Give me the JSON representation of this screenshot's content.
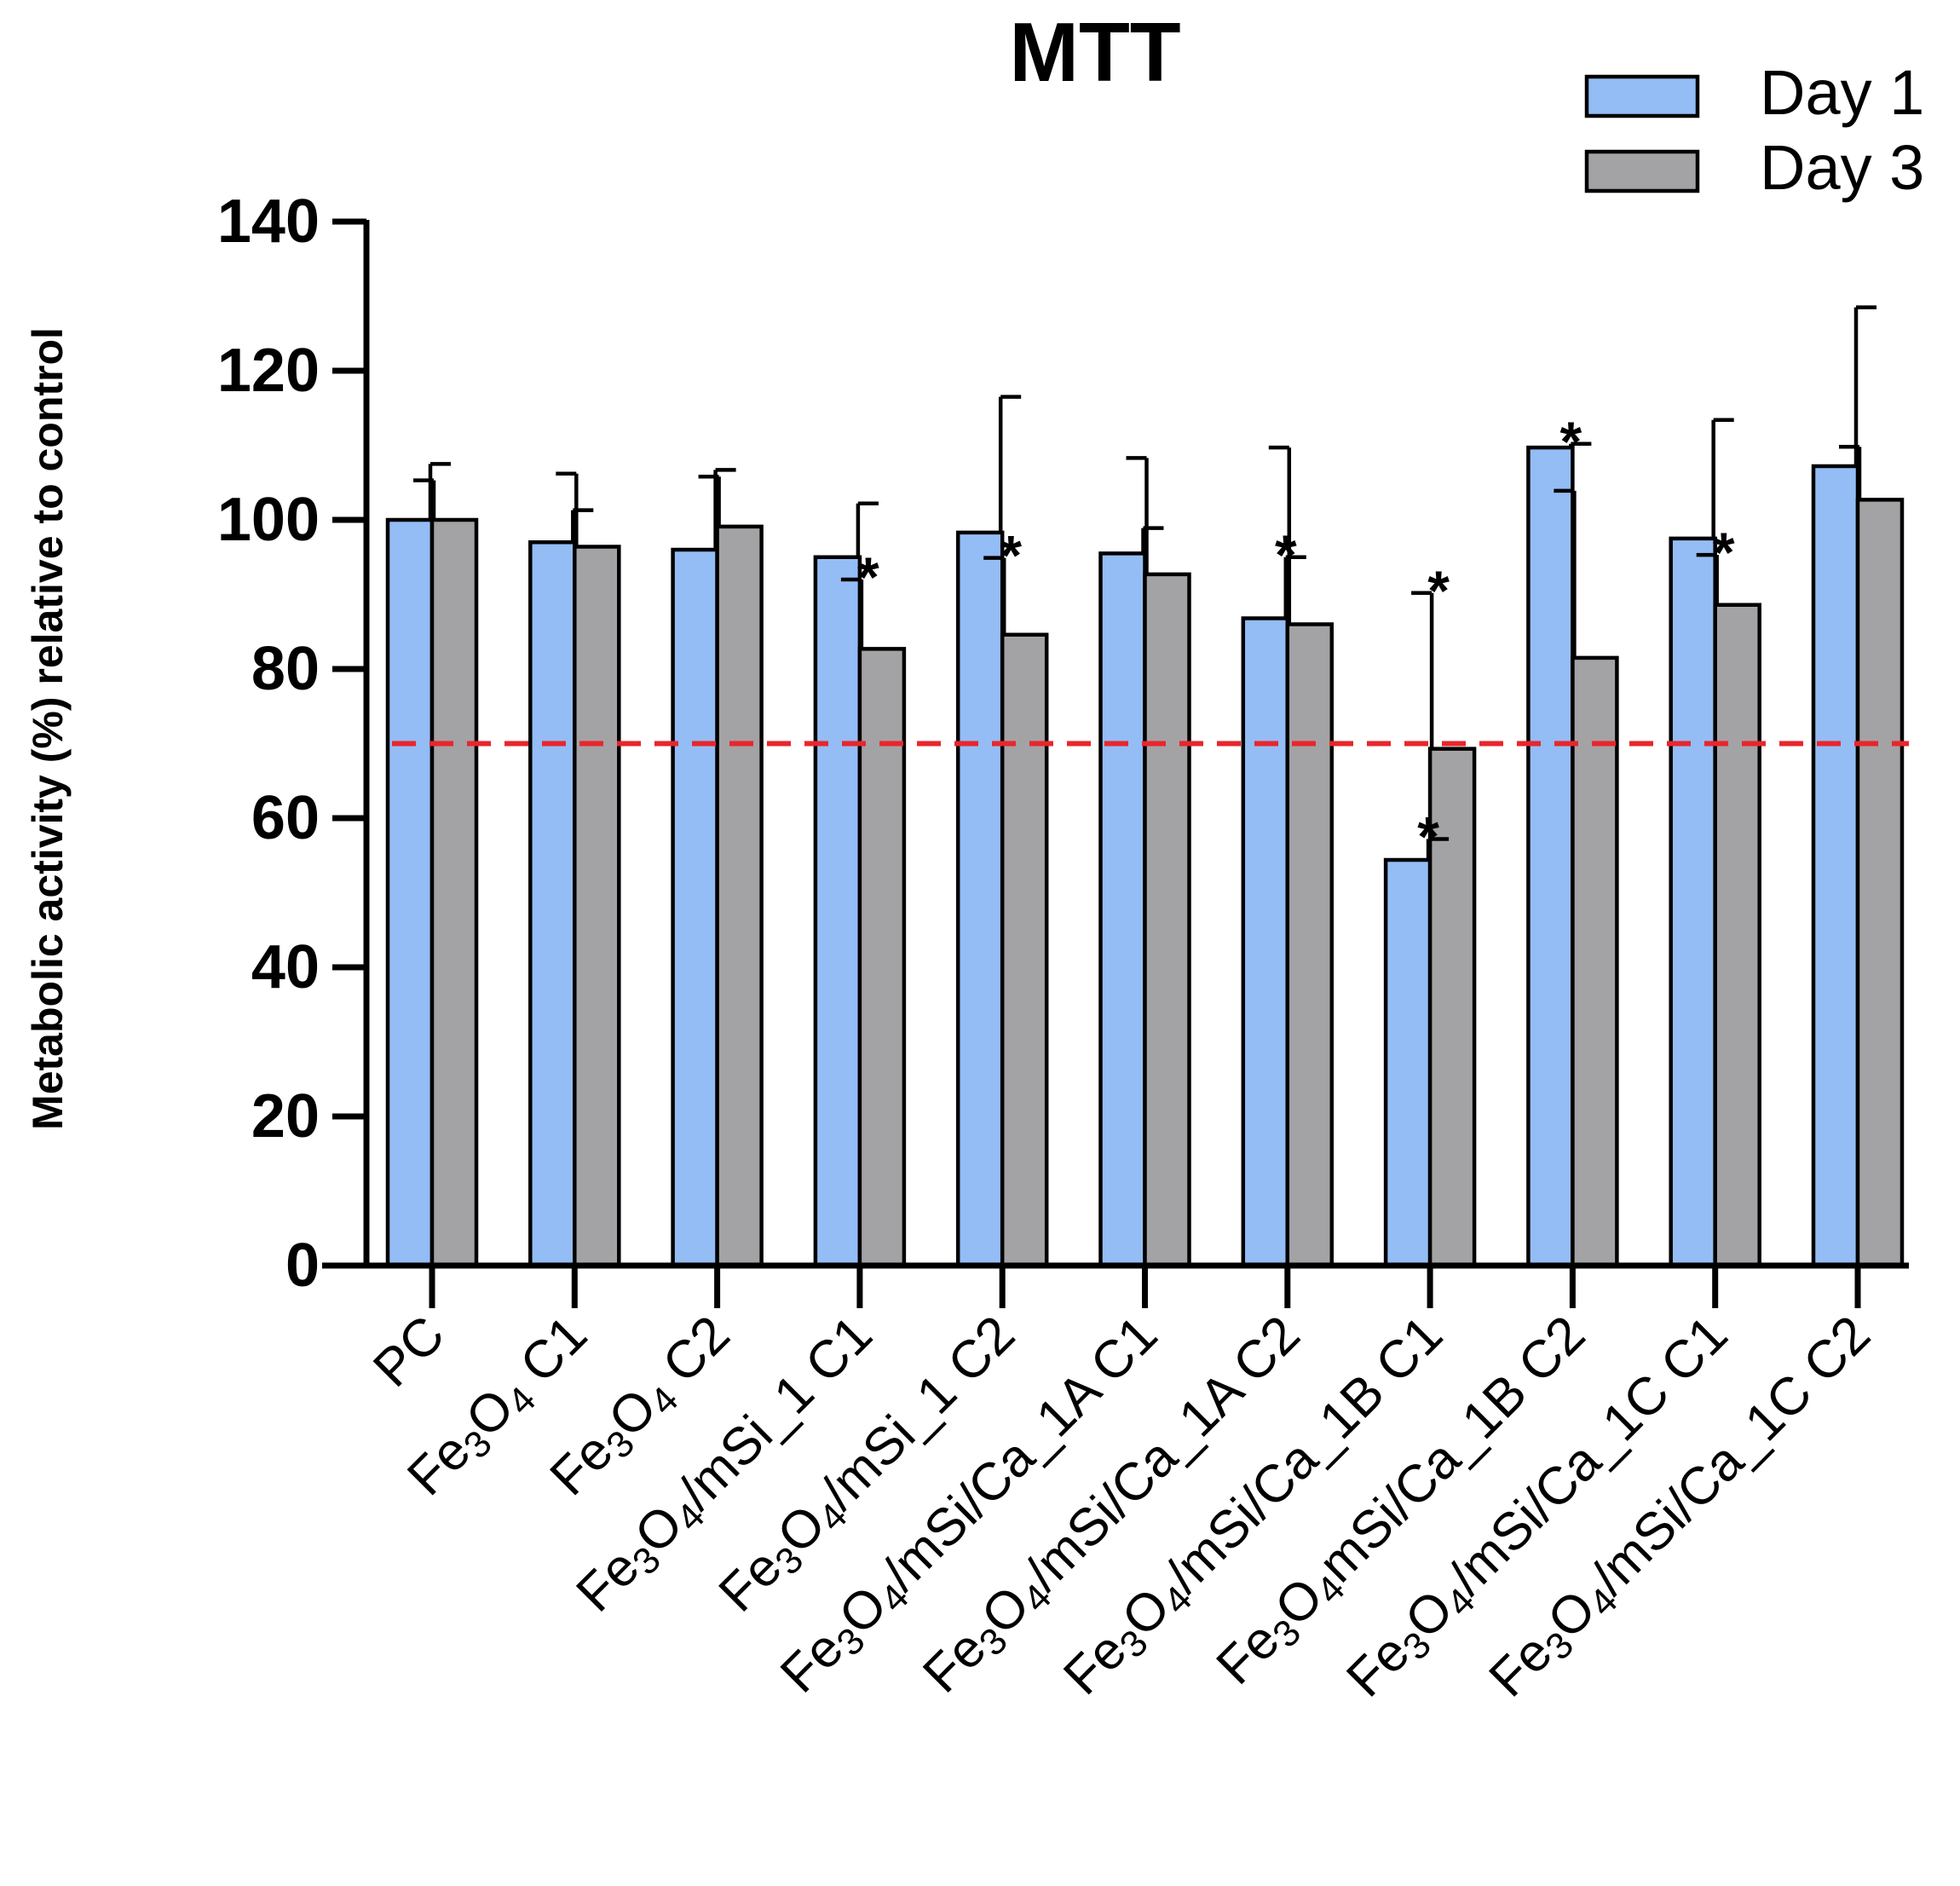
{
  "chart_data": {
    "type": "bar",
    "title": "MTT",
    "xlabel": "",
    "ylabel": "Metabolic activity (%) relative to control",
    "ylim": [
      0,
      140
    ],
    "yticks": [
      0,
      20,
      40,
      60,
      80,
      100,
      120,
      140
    ],
    "grid": false,
    "legend_position": "top-right",
    "threshold": 70,
    "categories": [
      [
        {
          "t": "PC"
        }
      ],
      [
        {
          "t": "Fe"
        },
        {
          "t": "3",
          "sub": true
        },
        {
          "t": "O"
        },
        {
          "t": "4",
          "sub": true
        },
        {
          "t": " C1"
        }
      ],
      [
        {
          "t": "Fe"
        },
        {
          "t": "3",
          "sub": true
        },
        {
          "t": "O"
        },
        {
          "t": "4",
          "sub": true
        },
        {
          "t": " C2"
        }
      ],
      [
        {
          "t": "Fe"
        },
        {
          "t": "3",
          "sub": true
        },
        {
          "t": "O"
        },
        {
          "t": "4",
          "sub": true
        },
        {
          "t": "/mSi_1 C1"
        }
      ],
      [
        {
          "t": "Fe"
        },
        {
          "t": "3",
          "sub": true
        },
        {
          "t": "O"
        },
        {
          "t": "4",
          "sub": true
        },
        {
          "t": "/mSi_1 C2"
        }
      ],
      [
        {
          "t": "Fe"
        },
        {
          "t": "3",
          "sub": true
        },
        {
          "t": "O"
        },
        {
          "t": "4",
          "sub": true
        },
        {
          "t": "/mSi/Ca_1A C1"
        }
      ],
      [
        {
          "t": "Fe"
        },
        {
          "t": "3",
          "sub": true
        },
        {
          "t": "O"
        },
        {
          "t": "4",
          "sub": true
        },
        {
          "t": "/mSi/Ca_1A C2"
        }
      ],
      [
        {
          "t": "Fe"
        },
        {
          "t": "3",
          "sub": true
        },
        {
          "t": "O"
        },
        {
          "t": "4",
          "sub": true
        },
        {
          "t": "/mSi/Ca_1B C1"
        }
      ],
      [
        {
          "t": "Fe"
        },
        {
          "t": "3",
          "sub": true
        },
        {
          "t": "O"
        },
        {
          "t": "4",
          "sub": true
        },
        {
          "t": "mSi/Ca_1B C2"
        }
      ],
      [
        {
          "t": "Fe"
        },
        {
          "t": "3",
          "sub": true
        },
        {
          "t": "O"
        },
        {
          "t": "4",
          "sub": true
        },
        {
          "t": "/mSi/Ca_1C C1"
        }
      ],
      [
        {
          "t": "Fe"
        },
        {
          "t": "3",
          "sub": true
        },
        {
          "t": "O"
        },
        {
          "t": "4",
          "sub": true
        },
        {
          "t": "/mSi/Ca_1C C2"
        }
      ]
    ],
    "series": [
      {
        "name": "Day 1",
        "color": "#94bdf5",
        "values": [
          100,
          97,
          96,
          95,
          98.3,
          95.5,
          86.8,
          54.4,
          109.7,
          97.5,
          107.2
        ],
        "errors": [
          7.5,
          4.3,
          10.7,
          7.2,
          18.2,
          3.4,
          8.2,
          2.8,
          0.5,
          15.9,
          21.3
        ],
        "stars": [
          false,
          false,
          false,
          false,
          false,
          false,
          true,
          true,
          true,
          false,
          false
        ]
      },
      {
        "name": "Day 3",
        "color": "#a3a3a5",
        "values": [
          100,
          96.4,
          99.1,
          82.7,
          84.6,
          92.7,
          86,
          69.3,
          81.5,
          88.6,
          102.7
        ],
        "errors": [
          5.3,
          9.8,
          6.7,
          9.3,
          10.3,
          15.6,
          23.7,
          20.9,
          22.4,
          6.7,
          7.1
        ],
        "stars": [
          false,
          false,
          false,
          true,
          true,
          false,
          false,
          true,
          false,
          true,
          false
        ]
      }
    ],
    "significance_marker": "*"
  },
  "colors": {
    "axis": "#000000",
    "threshold_line": "#e8262d"
  }
}
